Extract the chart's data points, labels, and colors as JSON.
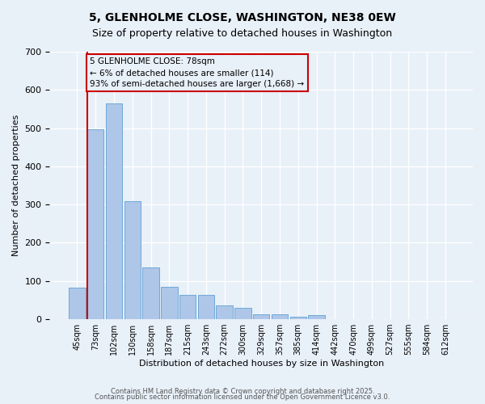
{
  "title_line1": "5, GLENHOLME CLOSE, WASHINGTON, NE38 0EW",
  "title_line2": "Size of property relative to detached houses in Washington",
  "xlabel": "Distribution of detached houses by size in Washington",
  "ylabel": "Number of detached properties",
  "bar_values": [
    82,
    497,
    565,
    308,
    135,
    85,
    63,
    63,
    37,
    30,
    12,
    12,
    7,
    10,
    0,
    0,
    0,
    0,
    0,
    0,
    0
  ],
  "bin_labels": [
    "45sqm",
    "73sqm",
    "102sqm",
    "130sqm",
    "158sqm",
    "187sqm",
    "215sqm",
    "243sqm",
    "272sqm",
    "300sqm",
    "329sqm",
    "357sqm",
    "385sqm",
    "414sqm",
    "442sqm",
    "470sqm",
    "499sqm",
    "527sqm",
    "555sqm",
    "584sqm",
    "612sqm"
  ],
  "bar_color": "#aec6e8",
  "bar_edge_color": "#6fa8d8",
  "property_bin_index": 1,
  "vline_color": "#cc0000",
  "annotation_text": "5 GLENHOLME CLOSE: 78sqm\n← 6% of detached houses are smaller (114)\n93% of semi-detached houses are larger (1,668) →",
  "ylim": [
    0,
    700
  ],
  "background_color": "#e8f0f8",
  "grid_color": "#ffffff",
  "footer_line1": "Contains HM Land Registry data © Crown copyright and database right 2025.",
  "footer_line2": "Contains public sector information licensed under the Open Government Licence v3.0."
}
